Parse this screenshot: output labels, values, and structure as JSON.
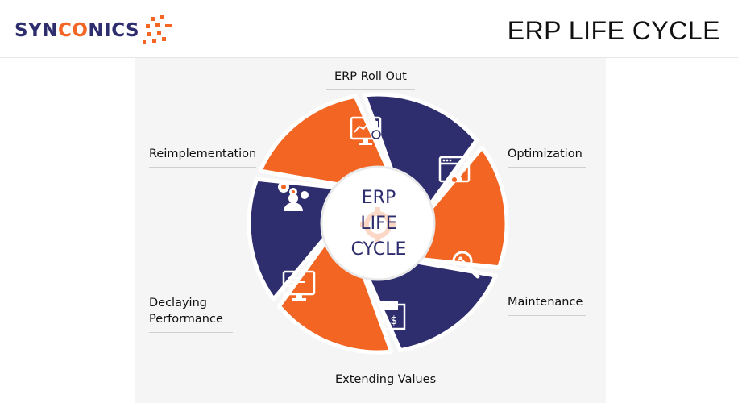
{
  "header": {
    "logo_part1": "SYN",
    "logo_part2": "CO",
    "logo_part3": "NICS",
    "title": "ERP LIFE CYCLE"
  },
  "center": {
    "line1": "ERP",
    "line2": "LIFE",
    "line3": "CYCLE"
  },
  "stages": [
    {
      "label": "ERP Roll Out",
      "icon": "analytics-monitor-icon",
      "color": "#2e2d6e"
    },
    {
      "label": "Optimization",
      "icon": "browser-gear-icon",
      "color": "#f26522"
    },
    {
      "label": "Maintenance",
      "icon": "magnifier-wrench-icon",
      "color": "#2e2d6e"
    },
    {
      "label": "Extending Values",
      "icon": "dollar-document-icon",
      "color": "#f26522"
    },
    {
      "label": "Declaying Performance",
      "label_line1": "Declaying",
      "label_line2": "Performance",
      "icon": "monitor-chart-icon",
      "color": "#2e2d6e"
    },
    {
      "label": "Reimplementation",
      "icon": "gears-person-icon",
      "color": "#f26522"
    }
  ],
  "colors": {
    "navy": "#2e2d6e",
    "orange": "#f26522"
  }
}
